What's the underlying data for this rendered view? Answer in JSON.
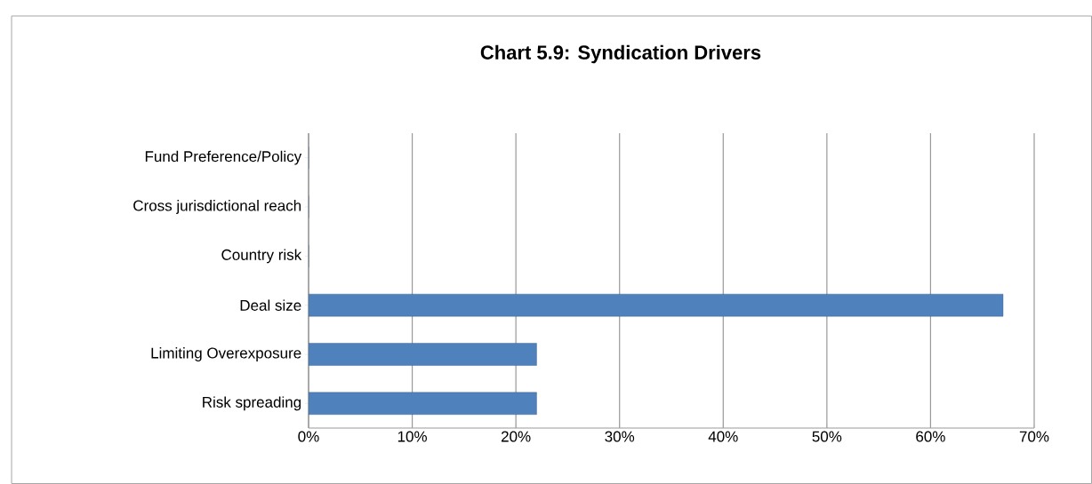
{
  "chart_data": {
    "type": "bar",
    "orientation": "horizontal",
    "title": "Chart 5.9: Syndication Drivers",
    "categories": [
      "Fund Preference/Policy",
      "Cross jurisdictional reach",
      "Country risk",
      "Deal size",
      "Limiting Overexposure",
      "Risk spreading"
    ],
    "values": [
      0,
      0,
      0,
      67,
      22,
      22
    ],
    "color": "#4f81bd",
    "xlim": [
      0,
      70
    ],
    "xticks": [
      {
        "value": 0,
        "label": "0%"
      },
      {
        "value": 10,
        "label": "10%"
      },
      {
        "value": 20,
        "label": "20%"
      },
      {
        "value": 30,
        "label": "30%"
      },
      {
        "value": 40,
        "label": "40%"
      },
      {
        "value": 50,
        "label": "50%"
      },
      {
        "value": 60,
        "label": "60%"
      },
      {
        "value": 70,
        "label": "70%"
      }
    ],
    "grid": "x"
  }
}
